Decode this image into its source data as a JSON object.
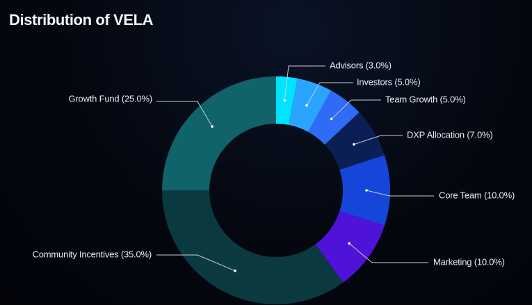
{
  "title": "Distribution of VELA",
  "chart_data": {
    "type": "pie",
    "donut": true,
    "title": "Distribution of VELA",
    "slices": [
      {
        "name": "Advisors",
        "value": 3.0,
        "label": "Advisors (3.0%)",
        "color": "#00e5ff"
      },
      {
        "name": "Investors",
        "value": 5.0,
        "label": "Investors (5.0%)",
        "color": "#2aa4ff"
      },
      {
        "name": "Team Growth",
        "value": 5.0,
        "label": "Team Growth (5.0%)",
        "color": "#2e6cf6"
      },
      {
        "name": "DXP Allocation",
        "value": 7.0,
        "label": "DXP Allocation (7.0%)",
        "color": "#0b1f55"
      },
      {
        "name": "Core Team",
        "value": 10.0,
        "label": "Core Team (10.0%)",
        "color": "#1646d9"
      },
      {
        "name": "Marketing",
        "value": 10.0,
        "label": "Marketing (10.0%)",
        "color": "#4e12d8"
      },
      {
        "name": "Community Incentives",
        "value": 35.0,
        "label": "Community Incentives (35.0%)",
        "color": "#0a3a40"
      },
      {
        "name": "Growth Fund",
        "value": 25.0,
        "label": "Growth Fund (25.0%)",
        "color": "#0f6369"
      }
    ],
    "start_angle_deg": 0,
    "direction": "clockwise"
  }
}
